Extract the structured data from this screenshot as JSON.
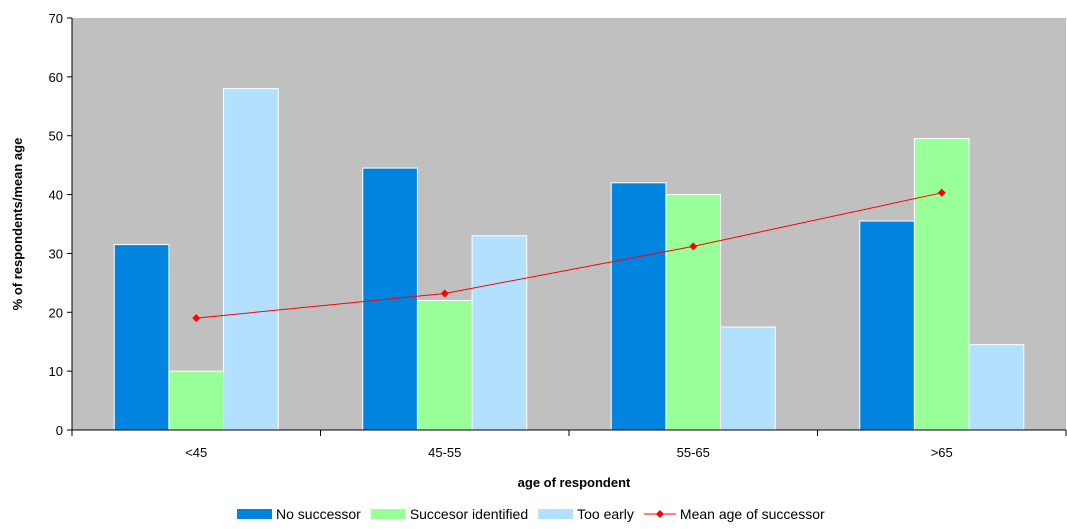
{
  "chart_data": {
    "type": "bar",
    "categories": [
      "<45",
      "45-55",
      "55-65",
      ">65"
    ],
    "series": [
      {
        "name": "No successor",
        "kind": "bar",
        "color": "#0084e0",
        "values": [
          31.5,
          44.5,
          42,
          35.5
        ]
      },
      {
        "name": "Succesor identified",
        "kind": "bar",
        "color": "#99ff99",
        "values": [
          10,
          22,
          40,
          49.5
        ]
      },
      {
        "name": "Too early",
        "kind": "bar",
        "color": "#b3e0ff",
        "values": [
          58,
          33,
          17.5,
          14.5
        ]
      },
      {
        "name": "Mean age of successor",
        "kind": "line",
        "color": "#ff0000",
        "values": [
          19,
          23.2,
          31.2,
          40.3
        ]
      }
    ],
    "xlabel": "age of respondent",
    "ylabel": "% of respondents/mean age",
    "ylim": [
      0,
      70
    ],
    "yticks": [
      "0",
      "10",
      "20",
      "30",
      "40",
      "50",
      "60",
      "70"
    ],
    "plot_background": "#c0c0c0",
    "grid": false,
    "legend_position": "bottom"
  }
}
